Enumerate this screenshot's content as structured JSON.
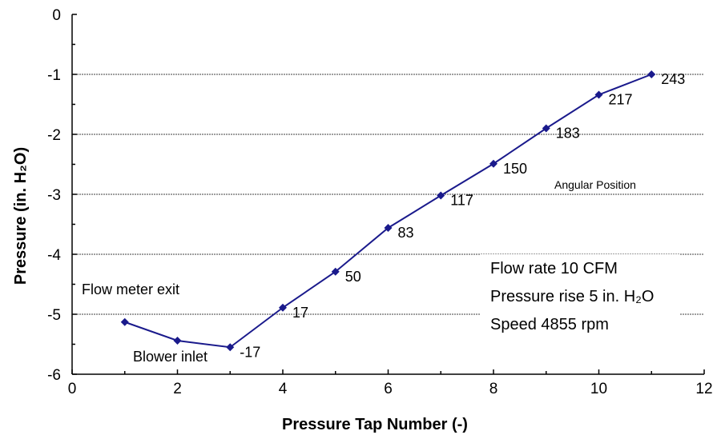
{
  "chart_data": {
    "type": "line",
    "title": "",
    "xlabel": "Pressure Tap Number (-)",
    "ylabel": "Pressure (in. H₂O)",
    "xlim": [
      0,
      12
    ],
    "ylim": [
      -6,
      0
    ],
    "xticks": [
      "0",
      "2",
      "4",
      "6",
      "8",
      "10",
      "12"
    ],
    "yticks": [
      "0",
      "-1",
      "-2",
      "-3",
      "-4",
      "-5",
      "-6"
    ],
    "grid": "horizontal",
    "series": [
      {
        "name": "",
        "color": "#1a1a8c",
        "x": [
          1,
          2,
          3,
          4,
          5,
          6,
          7,
          8,
          9,
          10,
          11
        ],
        "y": [
          -5.13,
          -5.44,
          -5.55,
          -4.89,
          -4.29,
          -3.56,
          -3.02,
          -2.49,
          -1.9,
          -1.34,
          -1.0
        ]
      }
    ],
    "point_labels": [
      {
        "text": "-17",
        "x": 3,
        "y": -5.55
      },
      {
        "text": "17",
        "x": 4,
        "y": -4.89
      },
      {
        "text": "50",
        "x": 5,
        "y": -4.29
      },
      {
        "text": "83",
        "x": 6,
        "y": -3.56
      },
      {
        "text": "117",
        "x": 7,
        "y": -3.02
      },
      {
        "text": "150",
        "x": 8,
        "y": -2.49
      },
      {
        "text": "183",
        "x": 9,
        "y": -1.9
      },
      {
        "text": "217",
        "x": 10,
        "y": -1.34
      },
      {
        "text": "243",
        "x": 11,
        "y": -1.0
      }
    ],
    "annotations": {
      "angular_position": "Angular Position",
      "flow_meter_exit": "Flow meter exit",
      "blower_inlet": "Blower inlet",
      "flow_rate": "Flow rate 10 CFM",
      "pressure_rise": "Pressure rise 5 in. H₂O",
      "speed": "Speed 4855 rpm"
    }
  }
}
